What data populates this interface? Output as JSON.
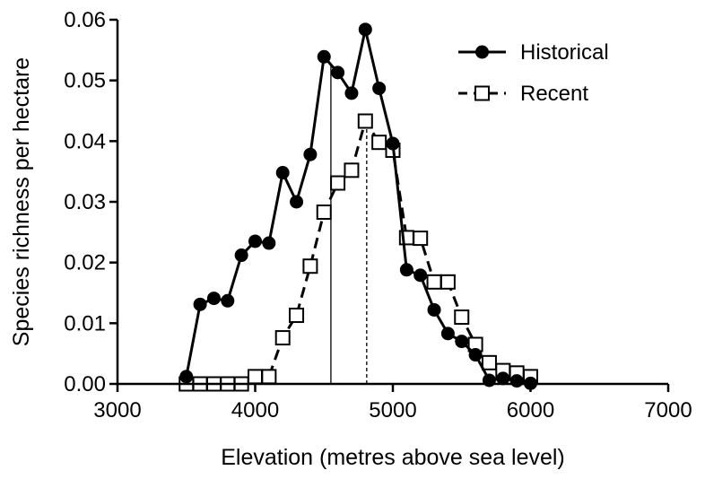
{
  "chart_data": {
    "type": "line",
    "title": "",
    "xlabel": "Elevation (metres above sea level)",
    "ylabel": "Species richness per hectare",
    "xlim": [
      3000,
      7000
    ],
    "ylim": [
      0,
      0.06
    ],
    "x_ticks": [
      "3000",
      "4000",
      "5000",
      "6000",
      "7000"
    ],
    "y_ticks": [
      "0.00",
      "0.01",
      "0.02",
      "0.03",
      "0.04",
      "0.05",
      "0.06"
    ],
    "grid": false,
    "legend_position": "top-right",
    "series": [
      {
        "name": "Historical",
        "style": "solid",
        "marker": "filled-circle",
        "color": "#000000",
        "x": [
          3500,
          3600,
          3700,
          3800,
          3900,
          4000,
          4100,
          4200,
          4300,
          4400,
          4500,
          4600,
          4700,
          4800,
          4900,
          5000,
          5100,
          5200,
          5300,
          5400,
          5500,
          5600,
          5700,
          5800,
          5900,
          6000
        ],
        "y": [
          0.0012,
          0.0131,
          0.0141,
          0.0137,
          0.0212,
          0.0235,
          0.0232,
          0.0348,
          0.03,
          0.0378,
          0.0539,
          0.0513,
          0.0479,
          0.0584,
          0.0487,
          0.0396,
          0.0188,
          0.0179,
          0.0122,
          0.0083,
          0.007,
          0.0048,
          0.0006,
          0.0009,
          0.0005,
          0.0001
        ]
      },
      {
        "name": "Recent",
        "style": "dashed",
        "marker": "open-square",
        "color": "#000000",
        "x": [
          3500,
          3600,
          3700,
          3800,
          3900,
          4000,
          4100,
          4200,
          4300,
          4400,
          4500,
          4600,
          4700,
          4800,
          4900,
          5000,
          5100,
          5200,
          5300,
          5400,
          5500,
          5600,
          5700,
          5800,
          5900,
          6000
        ],
        "y": [
          0.0,
          0.0,
          0.0,
          0.0,
          0.0,
          0.0012,
          0.0012,
          0.0076,
          0.0113,
          0.0194,
          0.0283,
          0.0331,
          0.0352,
          0.0433,
          0.0398,
          0.0385,
          0.0241,
          0.024,
          0.0168,
          0.0168,
          0.011,
          0.0065,
          0.0035,
          0.0022,
          0.0018,
          0.0012
        ]
      }
    ],
    "reference_lines": [
      {
        "x": 4550,
        "style": "solid",
        "series": "Historical"
      },
      {
        "x": 4810,
        "style": "dashed",
        "series": "Recent"
      }
    ]
  }
}
